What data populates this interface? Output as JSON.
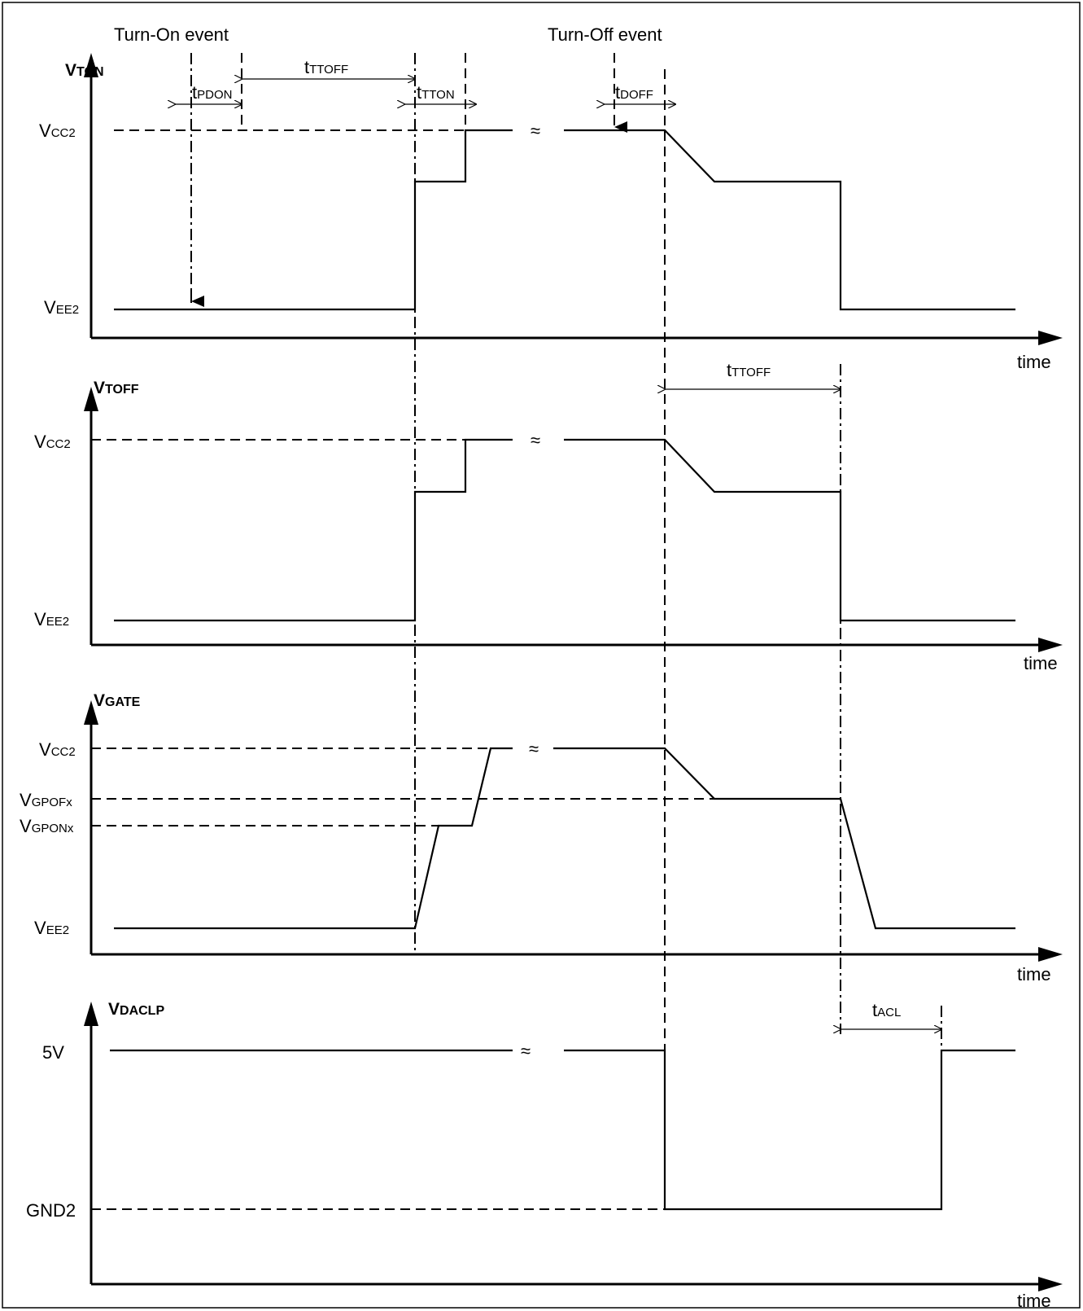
{
  "events": {
    "turn_on": "Turn-On event",
    "turn_off": "Turn-Off event"
  },
  "panels": {
    "vton": {
      "name_main": "V",
      "name_sub": "TON"
    },
    "vtoff": {
      "name_main": "V",
      "name_sub": "TOFF"
    },
    "vgate": {
      "name_main": "V",
      "name_sub": "GATE"
    },
    "vdaclp": {
      "name_main": "V",
      "name_sub": "DACLP"
    }
  },
  "levels": {
    "vcc2": {
      "main": "V",
      "sub": "CC2"
    },
    "vee2": {
      "main": "V",
      "sub": "EE2"
    },
    "vgpof": {
      "main": "V",
      "sub": "GPOFx"
    },
    "vgpon": {
      "main": "V",
      "sub": "GPONx"
    },
    "five_v": "5V",
    "gnd2": "GND2"
  },
  "timings": {
    "tpdon": {
      "main": "t",
      "sub": "PDON"
    },
    "tttoff": {
      "main": "t",
      "sub": "TTOFF"
    },
    "ttton": {
      "main": "t",
      "sub": "TTON"
    },
    "tdoff": {
      "main": "t",
      "sub": "DOFF"
    },
    "tacl": {
      "main": "t",
      "sub": "ACL"
    }
  },
  "axis_label": "time",
  "break_mark": "≈"
}
